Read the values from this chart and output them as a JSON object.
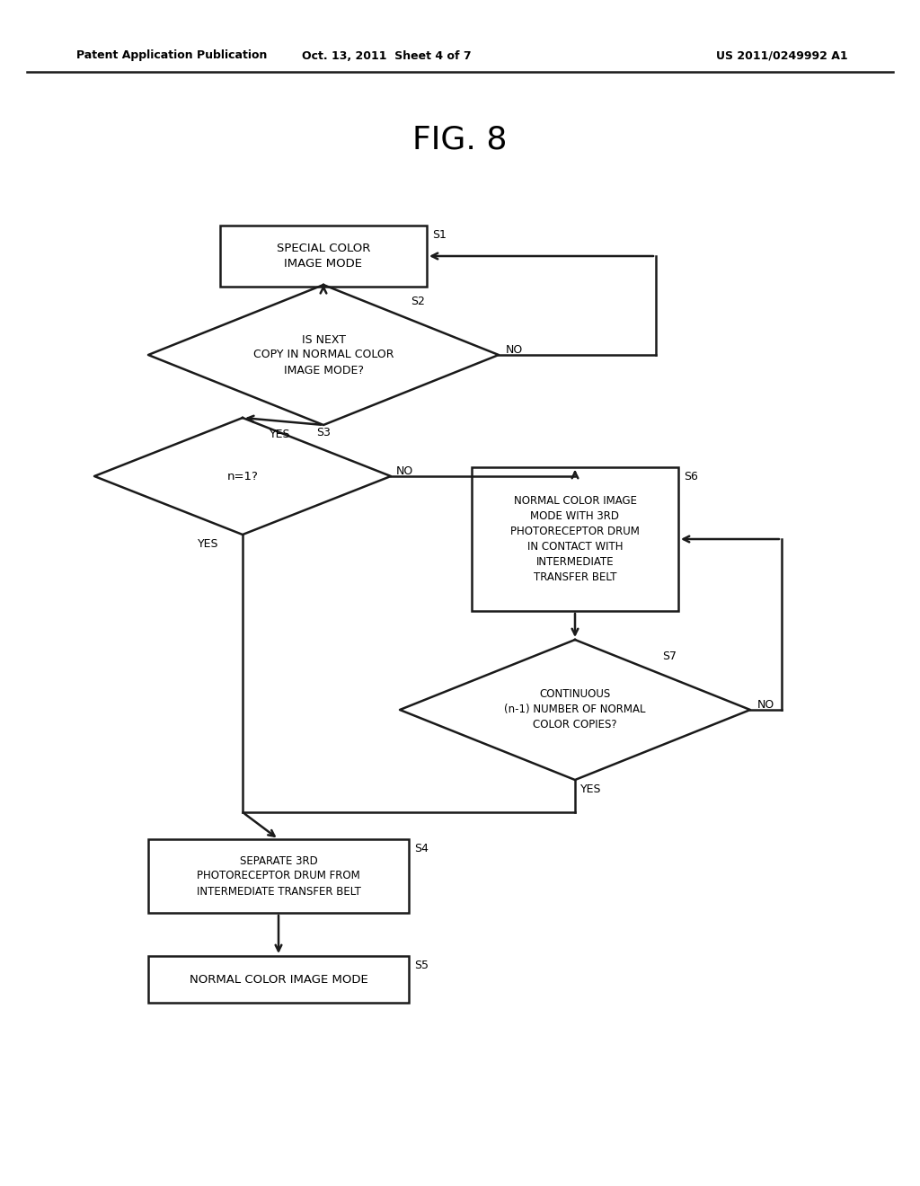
{
  "title": "FIG. 8",
  "header_left": "Patent Application Publication",
  "header_mid": "Oct. 13, 2011  Sheet 4 of 7",
  "header_right": "US 2011/0249992 A1",
  "bg_color": "#ffffff",
  "line_color": "#1a1a1a",
  "text_color": "#000000",
  "s1_label": "SPECIAL COLOR\nIMAGE MODE",
  "s2_label": "IS NEXT\nCOPY IN NORMAL COLOR\nIMAGE MODE?",
  "s3_label": "n=1?",
  "s6_label": "NORMAL COLOR IMAGE\nMODE WITH 3RD\nPHOTORECEPTOR DRUM\nIN CONTACT WITH\nINTERMEDIATE\nTRANSFER BELT",
  "s7_label": "CONTINUOUS\n(n-1) NUMBER OF NORMAL\nCOLOR COPIES?",
  "s4_label": "SEPARATE 3RD\nPHOTORECEPTOR DRUM FROM\nINTERMEDIATE TRANSFER BELT",
  "s5_label": "NORMAL COLOR IMAGE MODE",
  "figsize": [
    10.24,
    13.2
  ],
  "dpi": 100
}
